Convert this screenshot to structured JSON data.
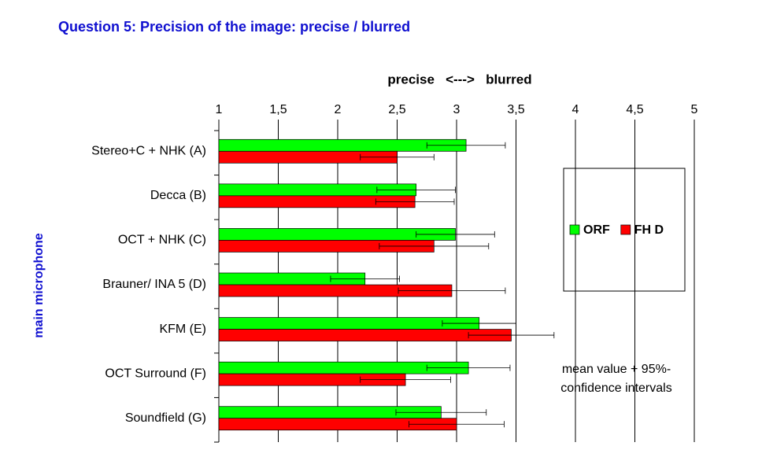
{
  "chart_data": {
    "type": "bar",
    "orientation": "horizontal",
    "title": "Question 5: Precision of the image: precise / blurred",
    "x_axis_label": "precise   <--->   blurred",
    "y_axis_label": "main microphone",
    "annotation": [
      "mean value + 95%-",
      "confidence intervals"
    ],
    "categories": [
      "Stereo+C + NHK (A)",
      "Decca (B)",
      "OCT + NHK (C)",
      "Brauner/ INA 5 (D)",
      "KFM (E)",
      "OCT Surround (F)",
      "Soundfield (G)"
    ],
    "series": [
      {
        "name": "ORF",
        "color": "#00ff00",
        "values": [
          3.08,
          2.66,
          2.99,
          2.23,
          3.19,
          3.1,
          2.87
        ],
        "errors": [
          0.33,
          0.33,
          0.33,
          0.29,
          0.31,
          0.35,
          0.38
        ]
      },
      {
        "name": "FH D",
        "color": "#ff0000",
        "values": [
          2.5,
          2.65,
          2.81,
          2.96,
          3.46,
          2.57,
          3.0
        ],
        "errors": [
          0.31,
          0.33,
          0.46,
          0.45,
          0.36,
          0.38,
          0.4
        ]
      }
    ],
    "xlim": [
      1,
      5
    ],
    "xticks": [
      1,
      {
        "value": 1.5,
        "label": "1,5"
      },
      2,
      {
        "value": 2.5,
        "label": "2,5"
      },
      3,
      {
        "value": 3.5,
        "label": "3,5"
      },
      4,
      {
        "value": 4.5,
        "label": "4,5"
      },
      5
    ],
    "grid": true
  }
}
